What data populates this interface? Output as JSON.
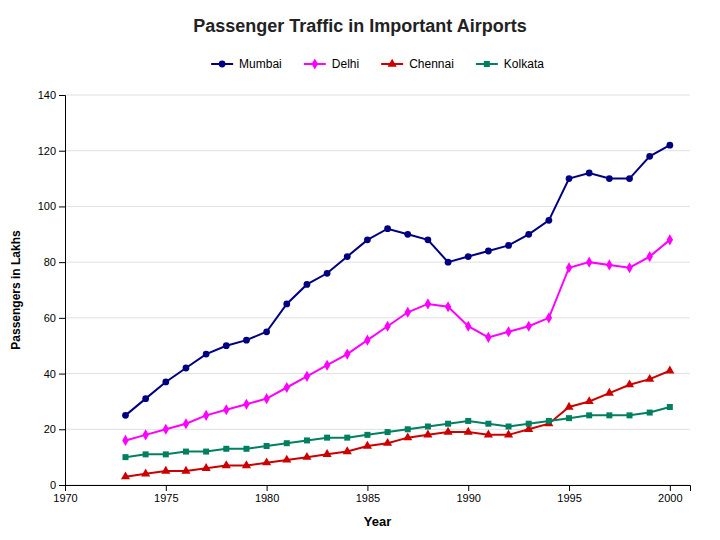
{
  "chart_data": {
    "type": "line",
    "title": "Passenger Traffic in Important Airports",
    "xlabel": "Year",
    "ylabel": "Passengers in Lakhs",
    "x": [
      1973,
      1974,
      1975,
      1976,
      1977,
      1978,
      1979,
      1980,
      1981,
      1982,
      1983,
      1984,
      1985,
      1986,
      1987,
      1988,
      1989,
      1990,
      1991,
      1992,
      1993,
      1994,
      1995,
      1996,
      1997,
      1998,
      1999,
      2000
    ],
    "series": [
      {
        "name": "Mumbai",
        "color": "#000080",
        "marker": "circle",
        "values": [
          25,
          31,
          37,
          42,
          47,
          50,
          52,
          55,
          65,
          72,
          76,
          82,
          88,
          92,
          90,
          88,
          80,
          82,
          84,
          86,
          90,
          95,
          110,
          112,
          110,
          110,
          118,
          122
        ]
      },
      {
        "name": "Delhi",
        "color": "#FF00FF",
        "marker": "diamond",
        "values": [
          16,
          18,
          20,
          22,
          25,
          27,
          29,
          31,
          35,
          39,
          43,
          47,
          52,
          57,
          62,
          65,
          64,
          57,
          53,
          55,
          57,
          60,
          78,
          80,
          79,
          78,
          82,
          88
        ]
      },
      {
        "name": "Chennai",
        "color": "#CC0000",
        "marker": "triangle",
        "values": [
          3,
          4,
          5,
          5,
          6,
          7,
          7,
          8,
          9,
          10,
          11,
          12,
          14,
          15,
          17,
          18,
          19,
          19,
          18,
          18,
          20,
          22,
          28,
          30,
          33,
          36,
          38,
          41
        ]
      },
      {
        "name": "Kolkata",
        "color": "#008060",
        "marker": "square",
        "values": [
          10,
          11,
          11,
          12,
          12,
          13,
          13,
          14,
          15,
          16,
          17,
          17,
          18,
          19,
          20,
          21,
          22,
          23,
          22,
          21,
          22,
          23,
          24,
          25,
          25,
          25,
          26,
          28
        ]
      }
    ],
    "xlim": [
      1970,
      2001
    ],
    "xticks": [
      1970,
      1975,
      1980,
      1985,
      1990,
      1995,
      2000
    ],
    "ylim": [
      0,
      140
    ],
    "yticks": [
      0,
      20,
      40,
      60,
      80,
      100,
      120,
      140
    ],
    "grid": true,
    "legend": "top"
  }
}
